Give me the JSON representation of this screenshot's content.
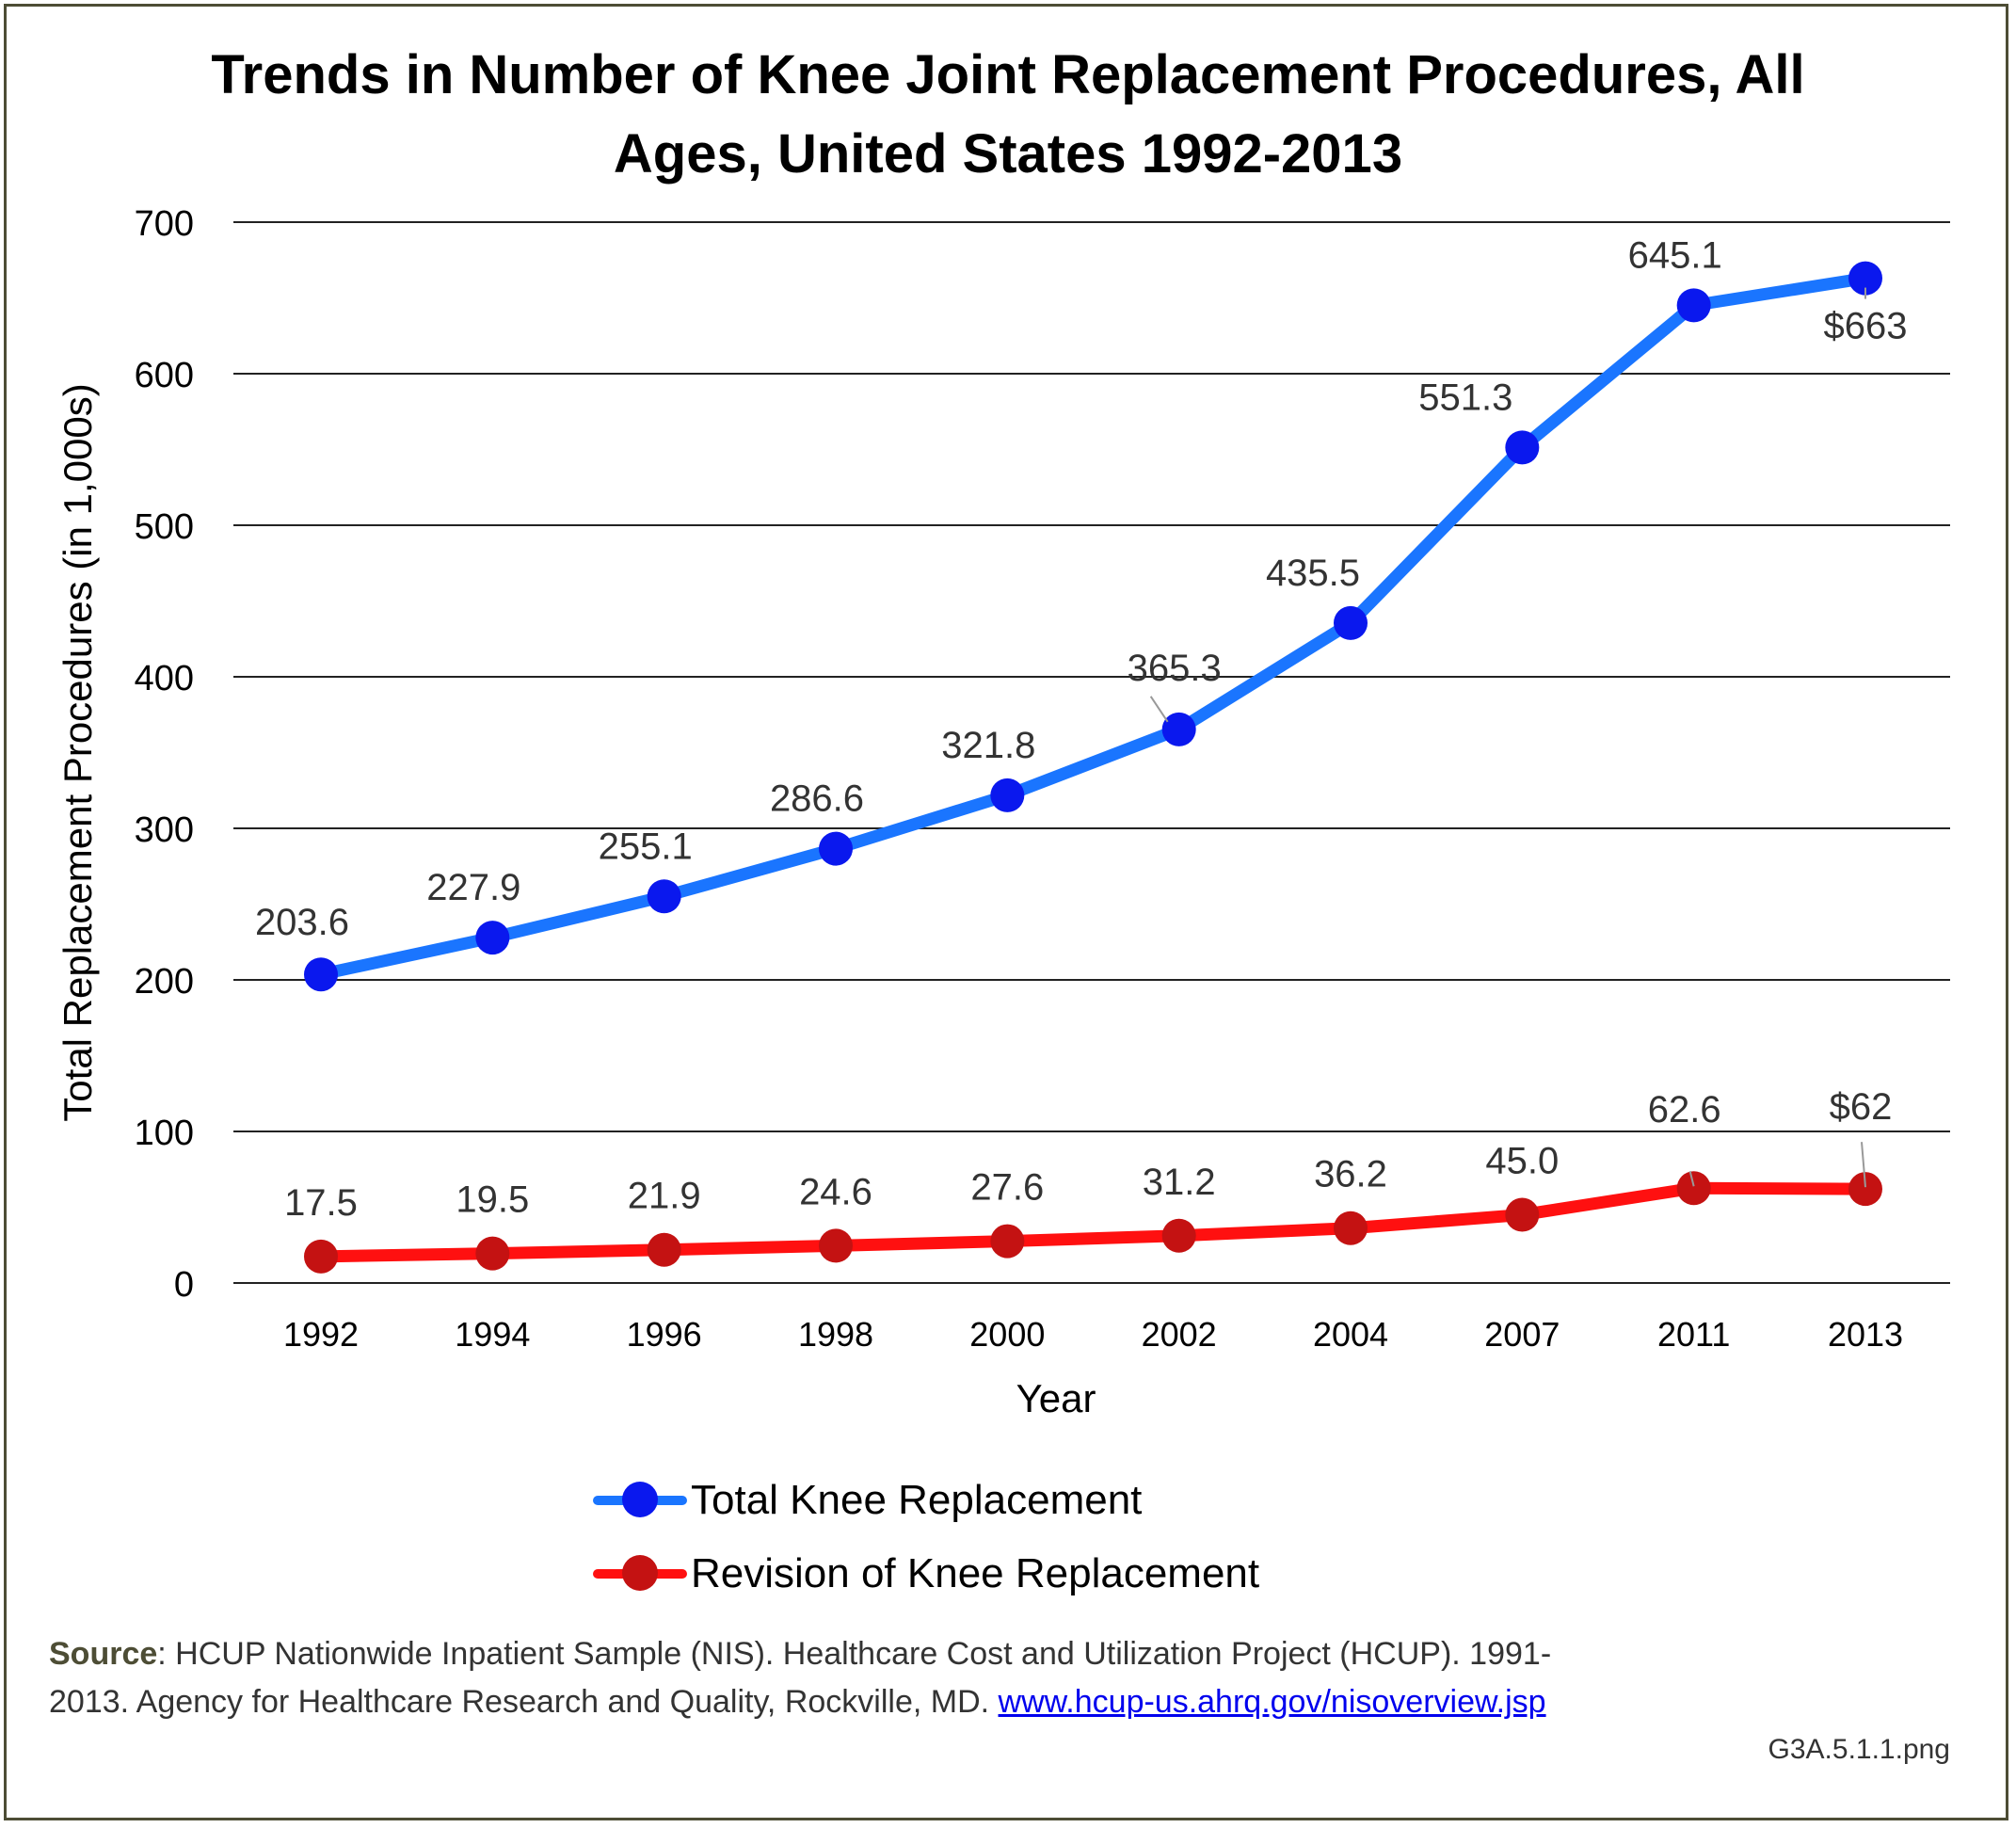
{
  "title_line1": "Trends in Number of Knee Joint Replacement Procedures, All",
  "title_line2": "Ages, United States 1992-2013",
  "chart_data": {
    "type": "line",
    "title": "Trends in Number of Knee Joint Replacement Procedures, All Ages, United States 1992-2013",
    "xlabel": "Year",
    "ylabel": "Total Replacement Procedures (in 1,000s)",
    "ylim": [
      0,
      700
    ],
    "yticks": [
      0,
      100,
      200,
      300,
      400,
      500,
      600,
      700
    ],
    "grid": true,
    "legend_position": "bottom",
    "categories": [
      "1992",
      "1994",
      "1996",
      "1998",
      "2000",
      "2002",
      "2004",
      "2007",
      "2011",
      "2013"
    ],
    "series": [
      {
        "name": "Total Knee Replacement",
        "color": "#1a75ff",
        "marker_color": "#0a18ee",
        "values": [
          203.6,
          227.9,
          255.1,
          286.6,
          321.8,
          365.3,
          435.5,
          551.3,
          645.1,
          663
        ],
        "labels": [
          "203.6",
          "227.9",
          "255.1",
          "286.6",
          "321.8",
          "365.3",
          "435.5",
          "551.3",
          "645.1",
          "$663"
        ]
      },
      {
        "name": "Revision of Knee Replacement",
        "color": "#ff1010",
        "marker_color": "#c41212",
        "values": [
          17.5,
          19.5,
          21.9,
          24.6,
          27.6,
          31.2,
          36.2,
          45.0,
          62.6,
          62
        ],
        "labels": [
          "17.5",
          "19.5",
          "21.9",
          "24.6",
          "27.6",
          "31.2",
          "36.2",
          "45.0",
          "62.6",
          "$62"
        ]
      }
    ]
  },
  "source": {
    "label": "Source",
    "text": ": HCUP Nationwide Inpatient Sample (NIS). Healthcare Cost and Utilization Project (HCUP). 1991-2013. Agency for Healthcare Research and Quality, Rockville, MD. ",
    "link": "www.hcup-us.ahrq.gov/nisoverview.jsp"
  },
  "filename": "G3A.5.1.1.png"
}
